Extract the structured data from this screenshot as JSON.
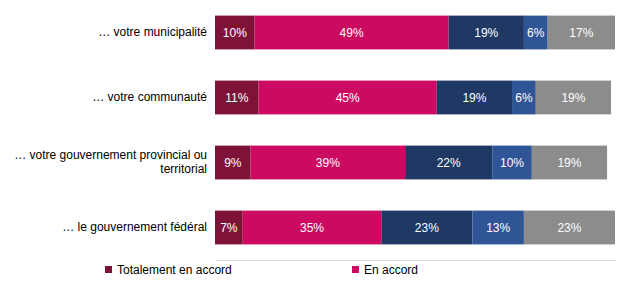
{
  "chart_data": {
    "type": "bar",
    "orientation": "horizontal",
    "stacked": true,
    "data_labels": true,
    "tick_labels": "y",
    "legend": "bottom",
    "categories": [
      "… votre municipalité",
      "… votre communauté",
      "… votre gouvernement provincial ou territorial",
      "… le gouvernement fédéral"
    ],
    "xlim": [
      0,
      101
    ],
    "series": [
      {
        "name": "Totalement en accord",
        "color": "#7f1238",
        "values": [
          10,
          11,
          9,
          7
        ],
        "value_labels": [
          "10%",
          "11%",
          "9%",
          "7%"
        ]
      },
      {
        "name": "En accord",
        "color": "#cc0a62",
        "values": [
          49,
          45,
          39,
          35
        ],
        "value_labels": [
          "49%",
          "45%",
          "39%",
          "35%"
        ]
      },
      {
        "color": "#1f3864",
        "values": [
          19,
          19,
          22,
          23
        ],
        "value_labels": [
          "19%",
          "19%",
          "22%",
          "23%"
        ]
      },
      {
        "color": "#2f5597",
        "values": [
          6,
          6,
          10,
          13
        ],
        "value_labels": [
          "6%",
          "6%",
          "10%",
          "13%"
        ]
      },
      {
        "color": "#8c8c8c",
        "values": [
          17,
          19,
          19,
          23
        ],
        "value_labels": [
          "17%",
          "19%",
          "19%",
          "23%"
        ]
      }
    ]
  }
}
